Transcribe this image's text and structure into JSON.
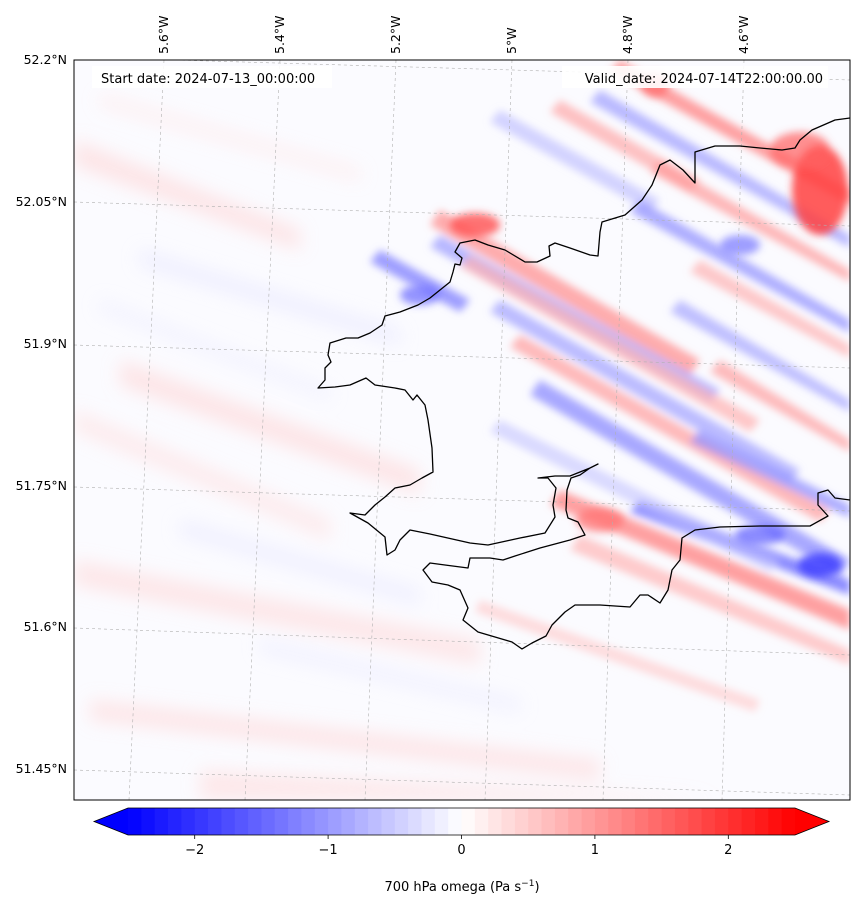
{
  "map": {
    "start_label": "Start date: 2024-07-13_00:00:00",
    "valid_label": "Valid_date: 2024-07-14T22:00:00.00",
    "lon_ticks": [
      "5.6°W",
      "5.4°W",
      "5.2°W",
      "5°W",
      "4.8°W",
      "4.6°W"
    ],
    "lat_ticks": [
      "52.2°N",
      "52.05°N",
      "51.9°N",
      "51.75°N",
      "51.6°N",
      "51.45°N"
    ],
    "field": "700 hPa omega",
    "coastline": "Pembrokeshire / Carmarthenshire coast, Wales",
    "gridlines": true
  },
  "colorbar": {
    "label_main": "700 hPa omega (Pa s",
    "label_exp": "−1",
    "label_close": ")",
    "colormap": "bwr",
    "min": -2.5,
    "max": 2.5,
    "extend": "both",
    "tick_values": [
      -2,
      -1,
      0,
      1,
      2
    ],
    "tick_labels": [
      "−2",
      "−1",
      "0",
      "1",
      "2"
    ],
    "color_low": "#0000ff",
    "color_mid": "#ffffff",
    "color_high": "#ff0000"
  }
}
